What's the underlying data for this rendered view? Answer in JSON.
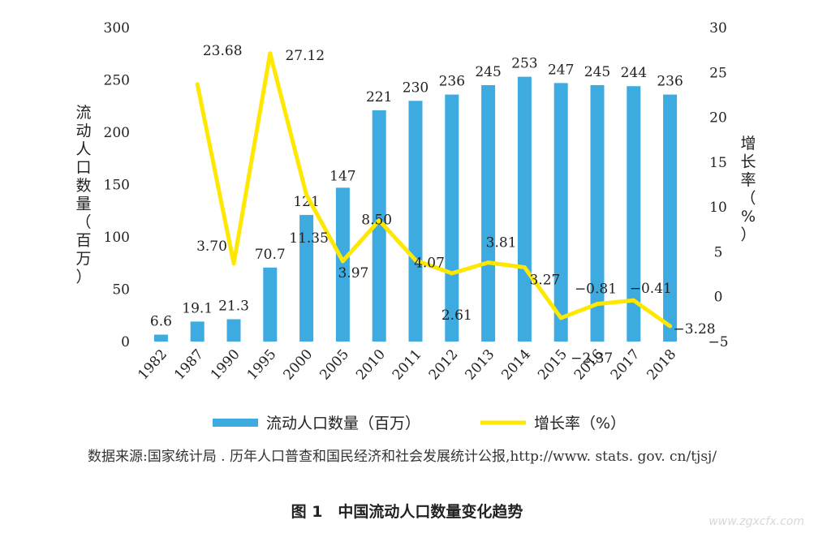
{
  "chart_data": {
    "type": "bar+line",
    "categories": [
      "1982",
      "1987",
      "1990",
      "1995",
      "2000",
      "2005",
      "2010",
      "2011",
      "2012",
      "2013",
      "2014",
      "2015",
      "2016",
      "2017",
      "2018"
    ],
    "series": [
      {
        "name": "流动人口数量（百万）",
        "type": "bar",
        "axis": "left",
        "color": "#3eabe0",
        "values": [
          6.6,
          19.1,
          21.3,
          70.7,
          121,
          147,
          221,
          230,
          236,
          245,
          253,
          247,
          245,
          244,
          236
        ],
        "labels": [
          "6.6",
          "19.1",
          "21.3",
          "70.7",
          "121",
          "147",
          "221",
          "230",
          "236",
          "245",
          "253",
          "247",
          "245",
          "244",
          "236"
        ]
      },
      {
        "name": "增长率（%）",
        "type": "line",
        "axis": "right",
        "color": "#ffe800",
        "values": [
          null,
          23.68,
          3.7,
          27.12,
          11.35,
          3.97,
          8.5,
          4.07,
          2.61,
          3.81,
          3.27,
          -2.37,
          -0.81,
          -0.41,
          -3.28
        ],
        "labels": [
          null,
          "23.68",
          "3.70",
          "27.12",
          "11.35",
          "3.97",
          "8.50",
          "4.07",
          "2.61",
          "3.81",
          "3.27",
          "−2.37",
          "−0.81",
          "−0.41",
          "−3.28"
        ]
      }
    ],
    "y_left": {
      "label": "流动人口数量（百万）",
      "ylim": [
        0,
        300
      ],
      "ticks": [
        0,
        50,
        100,
        150,
        200,
        250,
        300
      ]
    },
    "y_right": {
      "label": "增长率（%）",
      "ylim": [
        -5,
        30
      ],
      "ticks": [
        "−5",
        "0",
        "5",
        "10",
        "15",
        "20",
        "25",
        "30"
      ]
    },
    "grid": false,
    "legend": "bottom"
  },
  "source_note": "数据来源:国家统计局 . 历年人口普查和国民经济和社会发展统计公报,http://www. stats. gov. cn/tjsj/",
  "caption": "图 1　中国流动人口数量变化趋势",
  "watermark": "www.zgxcfx.com"
}
